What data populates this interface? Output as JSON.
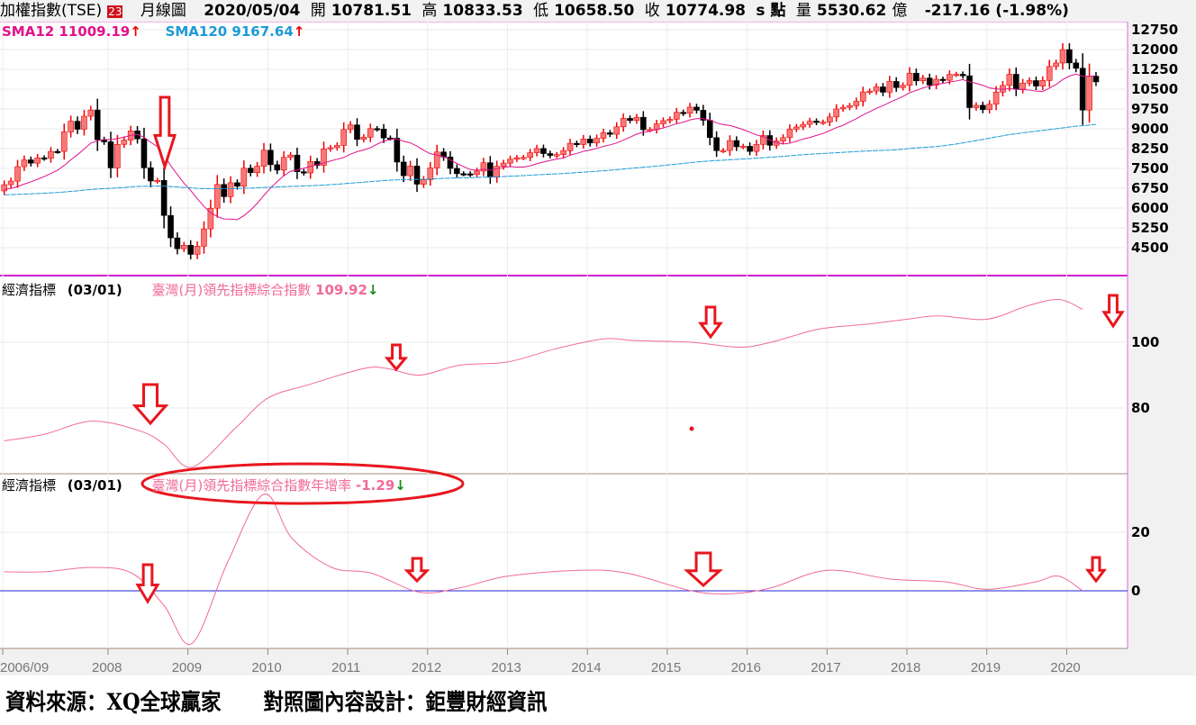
{
  "header": {
    "title": "加權指數(TSE)",
    "badge": "23",
    "period": "月線圖",
    "date": "2020/05/04",
    "open_label": "開",
    "open": "10781.51",
    "high_label": "高",
    "high": "10833.53",
    "low_label": "低",
    "low": "10658.50",
    "close_label": "收",
    "close": "10774.98",
    "unit": "s 點",
    "vol_label": "量",
    "volume": "5530.62",
    "vol_unit": "億",
    "change": "-217.16 (-1.98%)"
  },
  "panel1": {
    "sma12_label": "SMA12 11009.19",
    "sma120_label": "SMA120 9167.64",
    "arrow_up": "↑"
  },
  "panel2": {
    "name": "經濟指標",
    "date": "(03/01)",
    "series": "臺灣(月)領先指標綜合指數",
    "value": "109.92",
    "arrow_down": "↓"
  },
  "panel3": {
    "name": "經濟指標",
    "date": "(03/01)",
    "series": "臺灣(月)領先指標綜合指數年增率",
    "value": "-1.29",
    "arrow_down": "↓"
  },
  "footer": "資料來源：XQ全球贏家      對照圖內容設計：鉅豐財經資訊",
  "colors": {
    "up": "#f87878",
    "down": "#000000",
    "sma12": "#e0128a",
    "sma120": "#1d9ad6",
    "indicator": "#f06a9a",
    "zero": "#2222dd",
    "annot": "#e8161e"
  },
  "chart_data": [
    {
      "type": "candlestick",
      "title": "加權指數 月線圖",
      "start": "2006/09",
      "ylim": [
        4000,
        12750
      ],
      "yticks": [
        "12750",
        "12000",
        "11250",
        "10500",
        "9750",
        "9000",
        "8250",
        "7500",
        "6750",
        "6000",
        "5250",
        "4500"
      ],
      "closes": [
        6883,
        7021,
        7567,
        7823,
        7699,
        7901,
        7884,
        8145,
        8144,
        8883,
        9287,
        8982,
        9476,
        9711,
        8586,
        8506,
        7521,
        8412,
        8572,
        8920,
        8619,
        7524,
        7024,
        7046,
        5719,
        4871,
        4460,
        4591,
        4248,
        4557,
        5211,
        5993,
        6890,
        6432,
        6958,
        6826,
        7509,
        7340,
        7582,
        8188,
        7640,
        7436,
        7920,
        8005,
        7374,
        7329,
        7761,
        7616,
        8238,
        8287,
        8372,
        8973,
        9146,
        8600,
        8683,
        9008,
        8989,
        8653,
        8644,
        7741,
        7225,
        7588,
        6904,
        7072,
        7518,
        8122,
        7933,
        7501,
        7301,
        7296,
        7270,
        7397,
        7715,
        7167,
        7580,
        7700,
        7850,
        7907,
        7918,
        8094,
        8254,
        8062,
        7991,
        8022,
        8173,
        8450,
        8406,
        8612,
        8462,
        8639,
        8849,
        8792,
        9075,
        9393,
        9315,
        9436,
        8966,
        8975,
        9187,
        9307,
        9361,
        9622,
        9586,
        9820,
        9701,
        9323,
        8665,
        8174,
        8181,
        8554,
        8320,
        8338,
        8145,
        8411,
        8744,
        8377,
        8536,
        8666,
        8984,
        9069,
        9167,
        9290,
        9240,
        9254,
        9448,
        9751,
        9812,
        9872,
        10041,
        10395,
        10427,
        10585,
        10384,
        10793,
        10560,
        10643,
        11104,
        10815,
        10919,
        10657,
        10875,
        10837,
        11057,
        11064,
        11006,
        9802,
        9888,
        9727,
        9932,
        10389,
        10641,
        11063,
        10498,
        10731,
        10824,
        10618,
        10830,
        11358,
        11490,
        11997,
        11495,
        11292,
        9708,
        10992,
        10775
      ]
    },
    {
      "type": "line",
      "title": "臺灣(月)領先指標綜合指數",
      "yticks": [
        "100",
        "80"
      ],
      "points": [
        [
          2006.7,
          70
        ],
        [
          2007.2,
          72
        ],
        [
          2007.8,
          76
        ],
        [
          2008.4,
          73
        ],
        [
          2008.7,
          69
        ],
        [
          2009.05,
          62
        ],
        [
          2009.6,
          74
        ],
        [
          2010.0,
          83
        ],
        [
          2010.5,
          87
        ],
        [
          2011.2,
          92
        ],
        [
          2011.5,
          92
        ],
        [
          2011.9,
          90
        ],
        [
          2012.4,
          93
        ],
        [
          2013.0,
          94
        ],
        [
          2013.6,
          98
        ],
        [
          2014.2,
          101
        ],
        [
          2014.6,
          100.5
        ],
        [
          2015.3,
          100
        ],
        [
          2015.9,
          98.5
        ],
        [
          2016.3,
          100
        ],
        [
          2016.9,
          104
        ],
        [
          2017.5,
          105.5
        ],
        [
          2018.0,
          107
        ],
        [
          2018.4,
          108
        ],
        [
          2019.0,
          107
        ],
        [
          2019.5,
          111
        ],
        [
          2019.9,
          113
        ],
        [
          2020.2,
          110
        ]
      ]
    },
    {
      "type": "line",
      "title": "臺灣(月)領先指標綜合指數年增率",
      "yticks": [
        "20",
        "0"
      ],
      "zero_line": 0,
      "points": [
        [
          2006.7,
          6.5
        ],
        [
          2007.2,
          6.5
        ],
        [
          2007.8,
          8
        ],
        [
          2008.3,
          6
        ],
        [
          2008.7,
          -5
        ],
        [
          2009.05,
          -18
        ],
        [
          2009.5,
          10
        ],
        [
          2009.95,
          33
        ],
        [
          2010.3,
          18
        ],
        [
          2010.8,
          8
        ],
        [
          2011.3,
          6
        ],
        [
          2011.9,
          -0.5
        ],
        [
          2012.4,
          1
        ],
        [
          2013.0,
          5
        ],
        [
          2013.9,
          7
        ],
        [
          2014.5,
          6
        ],
        [
          2015.3,
          0
        ],
        [
          2015.8,
          -1
        ],
        [
          2016.3,
          1
        ],
        [
          2017.0,
          7
        ],
        [
          2017.8,
          4
        ],
        [
          2018.5,
          3
        ],
        [
          2019.0,
          0.5
        ],
        [
          2019.6,
          3
        ],
        [
          2019.9,
          5
        ],
        [
          2020.2,
          0
        ]
      ]
    }
  ],
  "xticks": [
    "2006/09",
    "2008",
    "2009",
    "2010",
    "2011",
    "2012",
    "2013",
    "2014",
    "2015",
    "2016",
    "2017",
    "2018",
    "2019",
    "2020"
  ]
}
